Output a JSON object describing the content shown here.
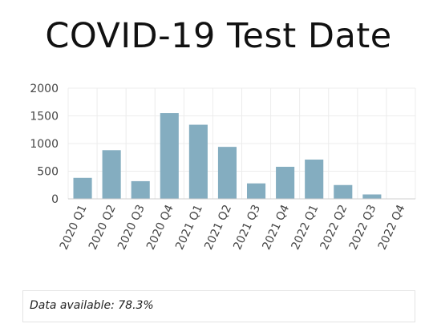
{
  "title": "COVID-19 Test Date",
  "note": {
    "label": "Data available:",
    "value": "78.3%"
  },
  "colors": {
    "bar": "#84adc0",
    "grid": "#ececec",
    "axis": "#cfcfcf"
  },
  "chart_data": {
    "type": "bar",
    "title": "COVID-19 Test Date",
    "xlabel": "",
    "ylabel": "",
    "categories": [
      "2020 Q1",
      "2020 Q2",
      "2020 Q3",
      "2020 Q4",
      "2021 Q1",
      "2021 Q2",
      "2021 Q3",
      "2021 Q4",
      "2022 Q1",
      "2022 Q2",
      "2022 Q3",
      "2022 Q4"
    ],
    "values": [
      380,
      880,
      320,
      1550,
      1340,
      940,
      280,
      580,
      710,
      250,
      80,
      5
    ],
    "ylim": [
      0,
      2000
    ],
    "yticks": [
      0,
      500,
      1000,
      1500,
      2000
    ],
    "grid": true,
    "legend": "none"
  }
}
